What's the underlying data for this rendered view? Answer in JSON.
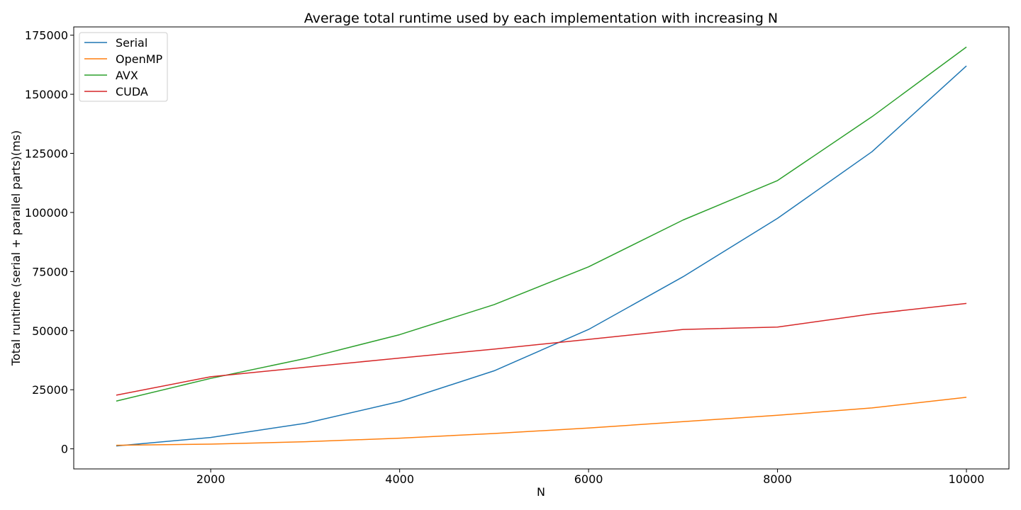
{
  "chart_data": {
    "type": "line",
    "title": "Average total runtime used by each implementation with increasing N",
    "xlabel": "N",
    "ylabel": "Total runtime (serial + parallel parts)(ms)",
    "x": [
      1000,
      2000,
      3000,
      4000,
      5000,
      6000,
      7000,
      8000,
      9000,
      10000
    ],
    "xlim": [
      550,
      10450
    ],
    "ylim": [
      -8500,
      178500
    ],
    "xticks": [
      2000,
      4000,
      6000,
      8000,
      10000
    ],
    "yticks": [
      0,
      25000,
      50000,
      75000,
      100000,
      125000,
      150000,
      175000
    ],
    "grid": false,
    "legend_position": "top-left",
    "series": [
      {
        "name": "Serial",
        "color": "#1f77b4",
        "values": [
          1200,
          4800,
          10800,
          20000,
          33000,
          50500,
          72800,
          97500,
          125700,
          162000
        ]
      },
      {
        "name": "OpenMP",
        "color": "#ff7f0e",
        "values": [
          1500,
          2000,
          3000,
          4500,
          6500,
          8800,
          11500,
          14200,
          17300,
          21800
        ]
      },
      {
        "name": "AVX",
        "color": "#2ca02c",
        "values": [
          20200,
          29800,
          38200,
          48300,
          61000,
          77000,
          96800,
          113500,
          140500,
          170000
        ]
      },
      {
        "name": "CUDA",
        "color": "#d62728",
        "values": [
          22700,
          30500,
          34500,
          38400,
          42200,
          46300,
          50500,
          51500,
          57100,
          61500
        ]
      }
    ]
  }
}
